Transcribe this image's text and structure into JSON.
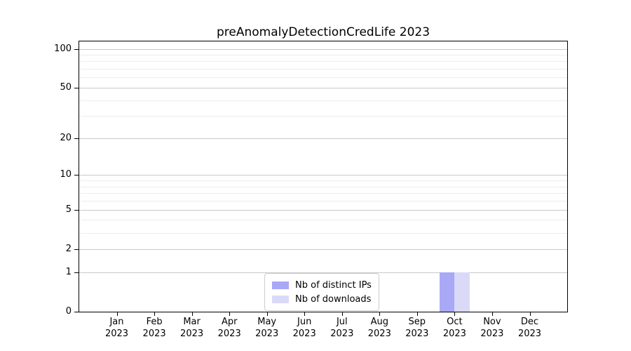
{
  "chart_data": {
    "type": "bar",
    "title": "preAnomalyDetectionCredLife 2023",
    "categories": [
      "Jan",
      "Feb",
      "Mar",
      "Apr",
      "May",
      "Jun",
      "Jul",
      "Aug",
      "Sep",
      "Oct",
      "Nov",
      "Dec"
    ],
    "category_year": "2023",
    "series": [
      {
        "name": "Nb of distinct IPs",
        "color": "#a8a8f7",
        "values": [
          0,
          0,
          0,
          0,
          0,
          0,
          0,
          0,
          0,
          1,
          0,
          0
        ]
      },
      {
        "name": "Nb of downloads",
        "color": "#dadaf8",
        "values": [
          0,
          0,
          0,
          0,
          0,
          0,
          0,
          0,
          0,
          1,
          0,
          0
        ]
      }
    ],
    "xlabel": "",
    "ylabel": "",
    "yscale": "log1p",
    "ylim": [
      0,
      114
    ],
    "yticks": [
      0,
      1,
      2,
      5,
      10,
      20,
      50,
      100
    ],
    "yticks_minor": [
      3,
      4,
      6,
      7,
      8,
      9,
      30,
      40,
      60,
      70,
      80,
      90
    ],
    "grid": "both",
    "legend": {
      "position": "lower center"
    },
    "colors": {
      "major_grid": "#c9c9c9",
      "minor_grid": "#ededed",
      "axis": "#000000",
      "background": "#ffffff"
    }
  }
}
